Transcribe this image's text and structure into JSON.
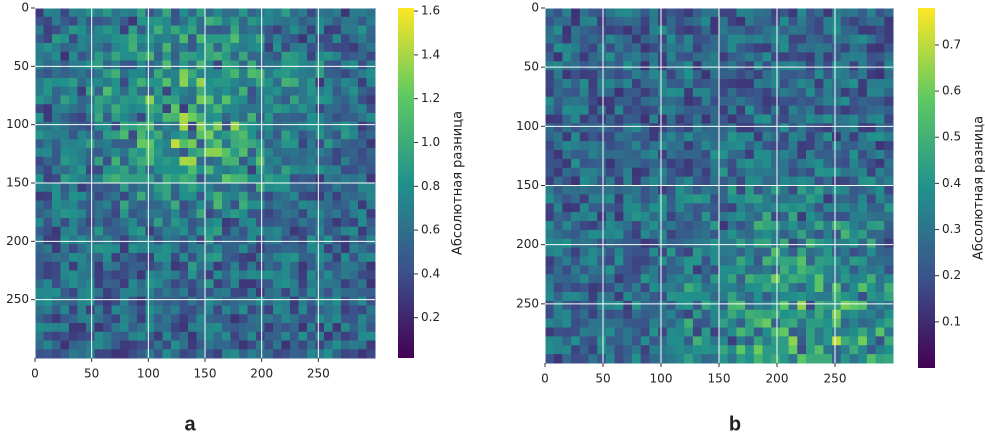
{
  "chart_data": [
    {
      "type": "heatmap",
      "panel_label": "a",
      "xlim": [
        0,
        300
      ],
      "ylim": [
        0,
        300
      ],
      "y_inverted": true,
      "xticks": [
        0,
        50,
        100,
        150,
        200,
        250
      ],
      "yticks": [
        0,
        50,
        100,
        150,
        200,
        250
      ],
      "grid": true,
      "colormap": [
        "#440154",
        "#3b528b",
        "#21918c",
        "#5ec962",
        "#fde725"
      ],
      "colorbar": {
        "label": "Абсолютная разница",
        "lim": [
          0.016,
          1.614
        ],
        "ticks": [
          0.2,
          0.4,
          0.6,
          0.8,
          {
            "value": 1,
            "label": "1.0"
          },
          1.2,
          1.4,
          1.6
        ]
      }
    },
    {
      "type": "heatmap",
      "panel_label": "b",
      "xlim": [
        0,
        300
      ],
      "ylim": [
        0,
        300
      ],
      "y_inverted": true,
      "xticks": [
        0,
        50,
        100,
        150,
        200,
        250
      ],
      "yticks": [
        0,
        50,
        100,
        150,
        200,
        250
      ],
      "grid": true,
      "colormap": [
        "#440154",
        "#3b528b",
        "#21918c",
        "#5ec962",
        "#fde725"
      ],
      "colorbar": {
        "label": "Абсолютная разница",
        "lim": [
          0.0,
          0.78
        ],
        "ticks": [
          0.1,
          0.2,
          0.3,
          0.4,
          0.5,
          0.6,
          0.7
        ]
      }
    }
  ]
}
